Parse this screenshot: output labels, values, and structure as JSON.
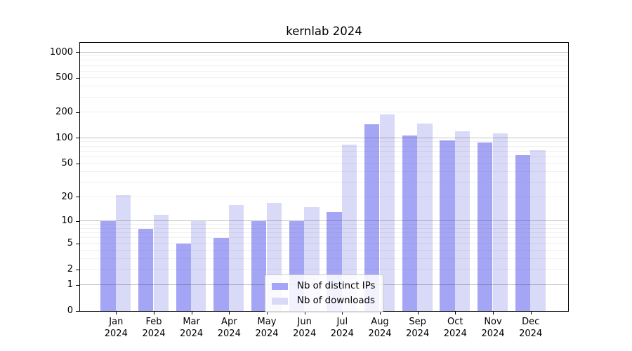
{
  "chart_data": {
    "type": "bar",
    "title": "kernlab 2024",
    "categories": [
      "Jan 2024",
      "Feb 2024",
      "Mar 2024",
      "Apr 2024",
      "May 2024",
      "Jun 2024",
      "Jul 2024",
      "Aug 2024",
      "Sep 2024",
      "Oct 2024",
      "Nov 2024",
      "Dec 2024"
    ],
    "series": [
      {
        "name": "Nb of distinct IPs",
        "color": "#a5a5f5",
        "values": [
          10,
          8,
          5,
          6,
          10,
          10,
          13,
          145,
          108,
          94,
          89,
          63
        ]
      },
      {
        "name": "Nb of downloads",
        "color": "#d9d9f8",
        "values": [
          21,
          12,
          10,
          16,
          17,
          15,
          84,
          190,
          148,
          120,
          114,
          72
        ]
      }
    ],
    "yscale": "log1p",
    "y_ticks": [
      1000,
      500,
      200,
      100,
      50,
      20,
      10,
      5,
      2,
      1,
      0
    ],
    "ylim": [
      0,
      1265
    ],
    "grid": "both",
    "grid_major_color": "#bdbdbd",
    "grid_minor_color": "#e9e9e9",
    "legend_position": "lower center"
  }
}
